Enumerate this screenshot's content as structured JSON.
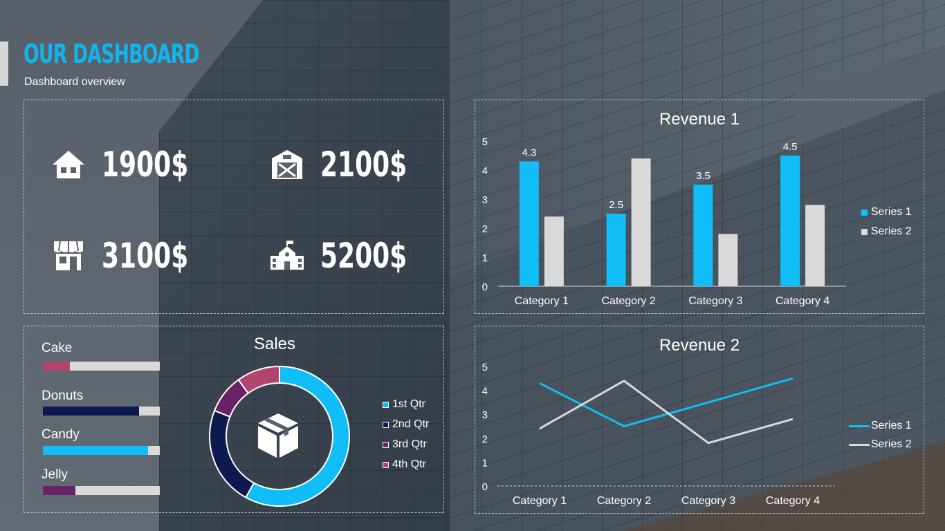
{
  "header": {
    "title": "OUR DASHBOARD",
    "subtitle": "Dashboard overview"
  },
  "kpis": [
    {
      "icon": "house-icon",
      "value": "1900$"
    },
    {
      "icon": "barn-icon",
      "value": "2100$"
    },
    {
      "icon": "store-icon",
      "value": "3100$"
    },
    {
      "icon": "school-icon",
      "value": "5200$"
    }
  ],
  "product_bars": [
    {
      "label": "Cake",
      "fraction": 0.23,
      "color": "#b2456e"
    },
    {
      "label": "Donuts",
      "fraction": 0.82,
      "color": "#0e1a4f"
    },
    {
      "label": "Candy",
      "fraction": 0.9,
      "color": "#10bdf7"
    },
    {
      "label": "Jelly",
      "fraction": 0.28,
      "color": "#6a2165"
    }
  ],
  "colors": {
    "accent": "#10b4ef",
    "series1": "#10bdf7",
    "series2": "#d9d9d9"
  },
  "chart_data": [
    {
      "type": "pie",
      "title": "Sales",
      "center_icon": "box-icon",
      "categories": [
        "1st Qtr",
        "2nd Qtr",
        "3rd Qtr",
        "4th Qtr"
      ],
      "values": [
        58,
        23,
        9,
        10
      ],
      "colors": [
        "#10bdf7",
        "#0e1a4f",
        "#6a2165",
        "#b2456e"
      ]
    },
    {
      "type": "bar",
      "title": "Revenue 1",
      "categories": [
        "Category 1",
        "Category 2",
        "Category 3",
        "Category 4"
      ],
      "series": [
        {
          "name": "Series 1",
          "values": [
            4.3,
            2.5,
            3.5,
            4.5
          ],
          "color": "#10bdf7",
          "show_labels": true
        },
        {
          "name": "Series 2",
          "values": [
            2.4,
            4.4,
            1.8,
            2.8
          ],
          "color": "#d9d9d9",
          "show_labels": false
        }
      ],
      "ylim": [
        0,
        5
      ],
      "yticks": [
        "0",
        "1",
        "2",
        "3",
        "4",
        "5"
      ],
      "legend": "right"
    },
    {
      "type": "line",
      "title": "Revenue 2",
      "categories": [
        "Category 1",
        "Category 2",
        "Category 3",
        "Category 4"
      ],
      "series": [
        {
          "name": "Series 1",
          "values": [
            4.3,
            2.5,
            3.5,
            4.5
          ],
          "color": "#10bdf7"
        },
        {
          "name": "Series 2",
          "values": [
            2.4,
            4.4,
            1.8,
            2.8
          ],
          "color": "#d9d9d9"
        }
      ],
      "ylim": [
        0,
        5
      ],
      "yticks": [
        "0",
        "1",
        "2",
        "3",
        "4",
        "5"
      ],
      "legend": "right"
    }
  ]
}
